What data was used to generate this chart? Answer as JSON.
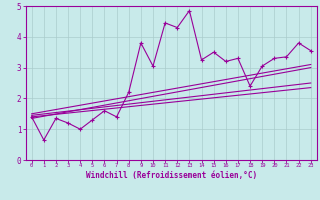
{
  "xlabel": "Windchill (Refroidissement éolien,°C)",
  "ylabel": "",
  "bg_color": "#c8eaea",
  "line_color": "#990099",
  "grid_color": "#aacccc",
  "xlim": [
    -0.5,
    23.5
  ],
  "ylim": [
    0,
    5
  ],
  "xticks": [
    0,
    1,
    2,
    3,
    4,
    5,
    6,
    7,
    8,
    9,
    10,
    11,
    12,
    13,
    14,
    15,
    16,
    17,
    18,
    19,
    20,
    21,
    22,
    23
  ],
  "yticks": [
    0,
    1,
    2,
    3,
    4,
    5
  ],
  "scatter_x": [
    0,
    1,
    2,
    3,
    4,
    5,
    6,
    7,
    8,
    9,
    10,
    11,
    12,
    13,
    14,
    15,
    16,
    17,
    18,
    19,
    20,
    21,
    22,
    23
  ],
  "scatter_y": [
    1.4,
    0.65,
    1.35,
    1.2,
    1.0,
    1.3,
    1.6,
    1.4,
    2.2,
    3.8,
    3.05,
    4.45,
    4.3,
    4.85,
    3.25,
    3.5,
    3.2,
    3.3,
    2.4,
    3.05,
    3.3,
    3.35,
    3.8,
    3.55
  ],
  "reg_lines": [
    {
      "x0": 0,
      "y0": 1.4,
      "x1": 23,
      "y1": 2.35
    },
    {
      "x0": 0,
      "y0": 1.45,
      "x1": 23,
      "y1": 2.5
    },
    {
      "x0": 0,
      "y0": 1.35,
      "x1": 23,
      "y1": 3.0
    },
    {
      "x0": 0,
      "y0": 1.5,
      "x1": 23,
      "y1": 3.1
    }
  ]
}
